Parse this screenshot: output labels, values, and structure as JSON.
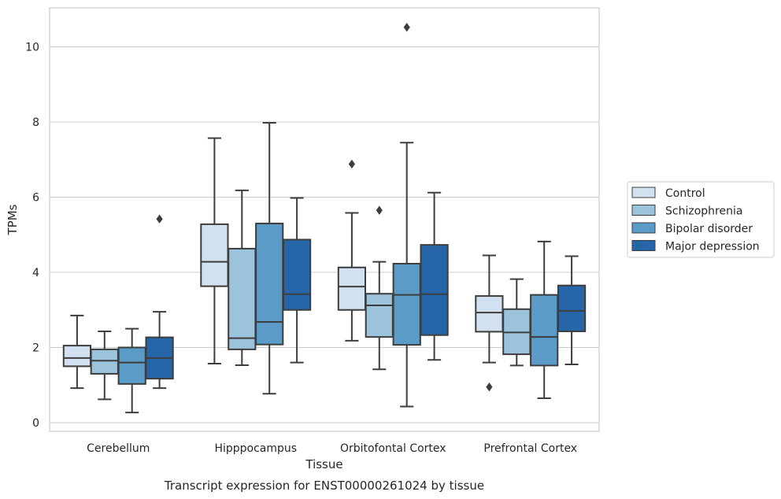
{
  "chart_data": {
    "type": "box",
    "title": "Transcript expression for ENST00000261024 by tissue",
    "xlabel": "Tissue",
    "ylabel": "TPMs",
    "ylim": [
      -0.2,
      11.0
    ],
    "yticks": [
      0,
      2,
      4,
      6,
      8,
      10
    ],
    "grid": "horizontal",
    "legend_position": "right",
    "categories": [
      "Cerebellum",
      "Hipppocampus",
      "Orbitofontal Cortex",
      "Prefrontal Cortex"
    ],
    "series": [
      {
        "name": "Control",
        "color": "#d2e1ef",
        "boxes": [
          {
            "whislo": 0.92,
            "q1": 1.5,
            "med": 1.72,
            "q3": 2.05,
            "whishi": 2.85,
            "fliers": []
          },
          {
            "whislo": 1.57,
            "q1": 3.63,
            "med": 4.28,
            "q3": 5.28,
            "whishi": 7.57,
            "fliers": []
          },
          {
            "whislo": 2.18,
            "q1": 3.0,
            "med": 3.62,
            "q3": 4.13,
            "whishi": 5.58,
            "fliers": [
              6.88
            ]
          },
          {
            "whislo": 1.6,
            "q1": 2.42,
            "med": 2.93,
            "q3": 3.37,
            "whishi": 4.45,
            "fliers": [
              0.95
            ]
          }
        ]
      },
      {
        "name": "Schizophrenia",
        "color": "#9cc3dc",
        "boxes": [
          {
            "whislo": 0.62,
            "q1": 1.3,
            "med": 1.65,
            "q3": 1.95,
            "whishi": 2.43,
            "fliers": []
          },
          {
            "whislo": 1.53,
            "q1": 1.95,
            "med": 2.25,
            "q3": 4.63,
            "whishi": 6.18,
            "fliers": []
          },
          {
            "whislo": 1.42,
            "q1": 2.28,
            "med": 3.12,
            "q3": 3.43,
            "whishi": 4.28,
            "fliers": [
              5.65
            ]
          },
          {
            "whislo": 1.52,
            "q1": 1.82,
            "med": 2.4,
            "q3": 3.02,
            "whishi": 3.82,
            "fliers": []
          }
        ]
      },
      {
        "name": "Bipolar disorder",
        "color": "#5a9bc7",
        "boxes": [
          {
            "whislo": 0.27,
            "q1": 1.03,
            "med": 1.6,
            "q3": 2.0,
            "whishi": 2.5,
            "fliers": []
          },
          {
            "whislo": 0.77,
            "q1": 2.08,
            "med": 2.68,
            "q3": 5.3,
            "whishi": 7.98,
            "fliers": []
          },
          {
            "whislo": 0.43,
            "q1": 2.07,
            "med": 3.4,
            "q3": 4.23,
            "whishi": 7.45,
            "fliers": [
              10.52
            ]
          },
          {
            "whislo": 0.65,
            "q1": 1.52,
            "med": 2.28,
            "q3": 3.4,
            "whishi": 4.82,
            "fliers": []
          }
        ]
      },
      {
        "name": "Major depression",
        "color": "#2666a8",
        "boxes": [
          {
            "whislo": 0.92,
            "q1": 1.17,
            "med": 1.72,
            "q3": 2.27,
            "whishi": 2.95,
            "fliers": [
              5.42
            ]
          },
          {
            "whislo": 1.6,
            "q1": 3.0,
            "med": 3.42,
            "q3": 4.87,
            "whishi": 5.98,
            "fliers": []
          },
          {
            "whislo": 1.67,
            "q1": 2.33,
            "med": 3.42,
            "q3": 4.73,
            "whishi": 6.12,
            "fliers": []
          },
          {
            "whislo": 1.55,
            "q1": 2.43,
            "med": 2.97,
            "q3": 3.65,
            "whishi": 4.43,
            "fliers": []
          }
        ]
      }
    ]
  }
}
